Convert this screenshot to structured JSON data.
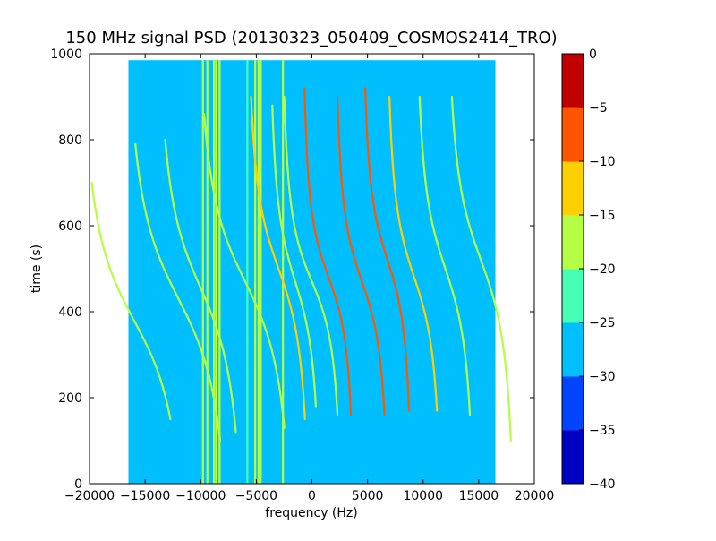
{
  "chart_data": {
    "type": "heatmap",
    "title": "150 MHz signal PSD (20130323_050409_COSMOS2414_TRO)",
    "xlabel": "frequency (Hz)",
    "ylabel": "time (s)",
    "xlim": [
      -20000,
      20000
    ],
    "ylim": [
      0,
      1000
    ],
    "x_ticks": [
      -20000,
      -15000,
      -10000,
      -5000,
      0,
      5000,
      10000,
      15000,
      20000
    ],
    "y_ticks": [
      0,
      200,
      400,
      600,
      800,
      1000
    ],
    "data_extent": {
      "x": [
        -16500,
        16500
      ],
      "y": [
        0,
        985
      ]
    },
    "background_level": -27.5,
    "colorbar": {
      "levels": [
        -40,
        -35,
        -30,
        -25,
        -20,
        -15,
        -10,
        -5,
        0
      ],
      "ticks": [
        "-40",
        "-35",
        "-30",
        "-25",
        "-20",
        "-15",
        "-10",
        "-5",
        "0"
      ],
      "colors": [
        "#0000c0",
        "#0044ff",
        "#00bfff",
        "#44ffb4",
        "#b4ff44",
        "#ffd000",
        "#ff5500",
        "#c00000"
      ]
    },
    "vertical_lines": [
      {
        "x": -9800,
        "level": -18
      },
      {
        "x": -9400,
        "level": -18
      },
      {
        "x": -8800,
        "level": -16
      },
      {
        "x": -8600,
        "level": -18
      },
      {
        "x": -8300,
        "level": -18
      },
      {
        "x": -5800,
        "level": -22
      },
      {
        "x": -5100,
        "level": -20
      },
      {
        "x": -4800,
        "level": -18
      },
      {
        "x": -4600,
        "level": -20
      },
      {
        "x": -2600,
        "level": -20
      }
    ],
    "doppler_tracks": [
      {
        "center_x": -16000,
        "center_t": 380,
        "amplitude": 5500,
        "halfwidth": 170,
        "t_range": [
          150,
          700
        ],
        "level": -20
      },
      {
        "center_x": -12000,
        "center_t": 430,
        "amplitude": 5500,
        "halfwidth": 180,
        "t_range": [
          100,
          790
        ],
        "level": -20
      },
      {
        "center_x": -10000,
        "center_t": 455,
        "amplitude": 4500,
        "halfwidth": 170,
        "t_range": [
          120,
          800
        ],
        "level": -20
      },
      {
        "center_x": -6000,
        "center_t": 470,
        "amplitude": 5000,
        "halfwidth": 170,
        "t_range": [
          130,
          860
        ],
        "level": -20
      },
      {
        "center_x": -3000,
        "center_t": 500,
        "amplitude": 3200,
        "halfwidth": 150,
        "t_range": [
          150,
          900
        ],
        "level": -12
      },
      {
        "center_x": -1500,
        "center_t": 470,
        "amplitude": 2600,
        "halfwidth": 140,
        "t_range": [
          180,
          880
        ],
        "level": -17
      },
      {
        "center_x": 0,
        "center_t": 470,
        "amplitude": 3000,
        "halfwidth": 120,
        "t_range": [
          160,
          900
        ],
        "level": -18
      },
      {
        "center_x": 1500,
        "center_t": 480,
        "amplitude": 2600,
        "halfwidth": 120,
        "t_range": [
          160,
          920
        ],
        "level": -7
      },
      {
        "center_x": 4500,
        "center_t": 470,
        "amplitude": 2700,
        "halfwidth": 130,
        "t_range": [
          160,
          900
        ],
        "level": -9
      },
      {
        "center_x": 6800,
        "center_t": 520,
        "amplitude": 2500,
        "halfwidth": 130,
        "t_range": [
          170,
          920
        ],
        "level": -10
      },
      {
        "center_x": 9200,
        "center_t": 480,
        "amplitude": 2800,
        "halfwidth": 140,
        "t_range": [
          170,
          900
        ],
        "level": -14
      },
      {
        "center_x": 12000,
        "center_t": 500,
        "amplitude": 3000,
        "halfwidth": 150,
        "t_range": [
          160,
          900
        ],
        "level": -19
      },
      {
        "center_x": 15200,
        "center_t": 520,
        "amplitude": 3500,
        "halfwidth": 160,
        "t_range": [
          100,
          900
        ],
        "level": -20
      }
    ]
  }
}
